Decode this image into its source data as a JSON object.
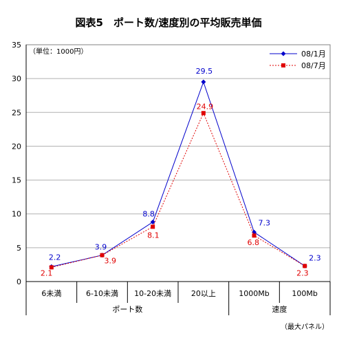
{
  "chart_data": {
    "type": "line",
    "title": "図表5　ポート数/速度別の平均販売単価",
    "unit_label": "（単位：1000円）",
    "footnote": "（最大パネル）",
    "categories": [
      "6未満",
      "6-10未満",
      "10-20未満",
      "20以上",
      "1000Mb",
      "100Mb"
    ],
    "groups": [
      {
        "label": "ポート数",
        "span": [
          0,
          3
        ]
      },
      {
        "label": "速度",
        "span": [
          4,
          5
        ]
      }
    ],
    "ylim": [
      0,
      35
    ],
    "yticks": [
      0,
      5,
      10,
      15,
      20,
      25,
      30,
      35
    ],
    "ytick_labels": [
      "0",
      "5",
      "10",
      "15",
      "20",
      "25",
      "30",
      "35"
    ],
    "grid": true,
    "legend_position": "top-right",
    "series": [
      {
        "name": "08/1月",
        "values": [
          2.2,
          3.9,
          8.8,
          29.5,
          7.3,
          2.3
        ],
        "labels": [
          "2.2",
          "3.9",
          "8.8",
          "29.5",
          "7.3",
          "2.3"
        ],
        "color": "#0000cc"
      },
      {
        "name": "08/7月",
        "values": [
          2.1,
          3.9,
          8.1,
          24.9,
          6.8,
          2.3
        ],
        "labels": [
          "2.1",
          "3.9",
          "8.1",
          "24.9",
          "6.8",
          "2.3"
        ],
        "color": "#e00000"
      }
    ]
  }
}
